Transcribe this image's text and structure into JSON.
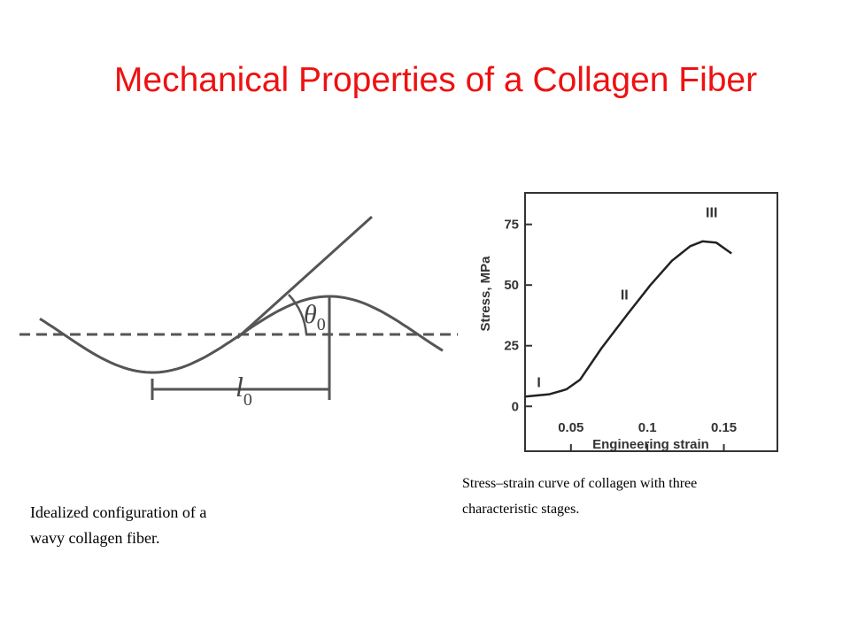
{
  "slide": {
    "title": "Mechanical Properties of a Collagen Fiber",
    "left_caption": [
      "Idealized configuration of a",
      "wavy collagen fiber."
    ],
    "right_caption": [
      "Stress–strain curve of collagen with three",
      "characteristic stages."
    ]
  },
  "diagram": {
    "angle_label": "θ",
    "angle_subscript": "0",
    "length_label": "l",
    "length_subscript": "0"
  },
  "chart_data": {
    "type": "line",
    "x_label": "Engineering strain",
    "y_label": "Stress, MPa",
    "x": [
      0.02,
      0.036,
      0.047,
      0.056,
      0.07,
      0.087,
      0.102,
      0.116,
      0.128,
      0.136,
      0.145,
      0.155
    ],
    "series": [
      {
        "color": "#222222",
        "values": [
          4,
          5,
          7,
          11,
          24,
          38,
          50,
          60,
          66,
          68,
          67.5,
          63
        ]
      }
    ],
    "xlim": [
      0.02,
      0.185
    ],
    "ylim": [
      -18.5,
      88
    ],
    "xticks": [
      0.05,
      0.1,
      0.15
    ],
    "yticks": [
      0,
      25,
      50,
      75
    ],
    "annotations": [
      {
        "text": "I",
        "x": 0.029,
        "y": 8
      },
      {
        "text": "II",
        "x": 0.085,
        "y": 44
      },
      {
        "text": "III",
        "x": 0.142,
        "y": 78
      }
    ]
  }
}
